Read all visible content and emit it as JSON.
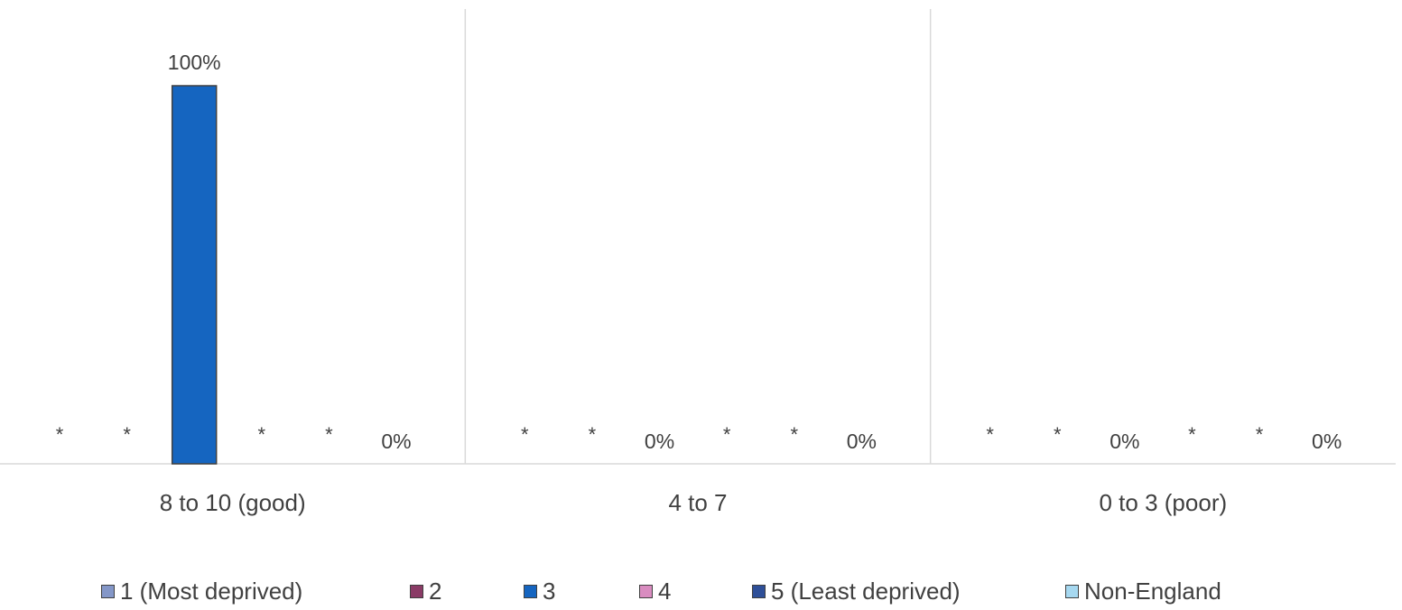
{
  "chart_data": {
    "type": "bar",
    "categories": [
      "8 to 10 (good)",
      "4 to 7",
      "0 to 3 (poor)"
    ],
    "ylim": [
      0,
      1
    ],
    "grid": false,
    "legend_position": "bottom",
    "series": [
      {
        "name": "1 (Most deprived)",
        "color": "#8497c8",
        "values": [
          null,
          null,
          null
        ],
        "labels": [
          "*",
          "*",
          "*"
        ]
      },
      {
        "name": "2",
        "color": "#8a3b66",
        "values": [
          null,
          null,
          null
        ],
        "labels": [
          "*",
          "*",
          "*"
        ]
      },
      {
        "name": "3",
        "color": "#1565c0",
        "values": [
          1.0,
          0,
          0
        ],
        "labels": [
          "100%",
          "0%",
          "0%"
        ]
      },
      {
        "name": "4",
        "color": "#d98cc0",
        "values": [
          null,
          null,
          null
        ],
        "labels": [
          "*",
          "*",
          "*"
        ]
      },
      {
        "name": "5 (Least deprived)",
        "color": "#2e4f98",
        "values": [
          null,
          null,
          null
        ],
        "labels": [
          "*",
          "*",
          "*"
        ]
      },
      {
        "name": "Non-England",
        "color": "#a6d8f0",
        "values": [
          0,
          0,
          0
        ],
        "labels": [
          "0%",
          "0%",
          "0%"
        ]
      }
    ]
  }
}
